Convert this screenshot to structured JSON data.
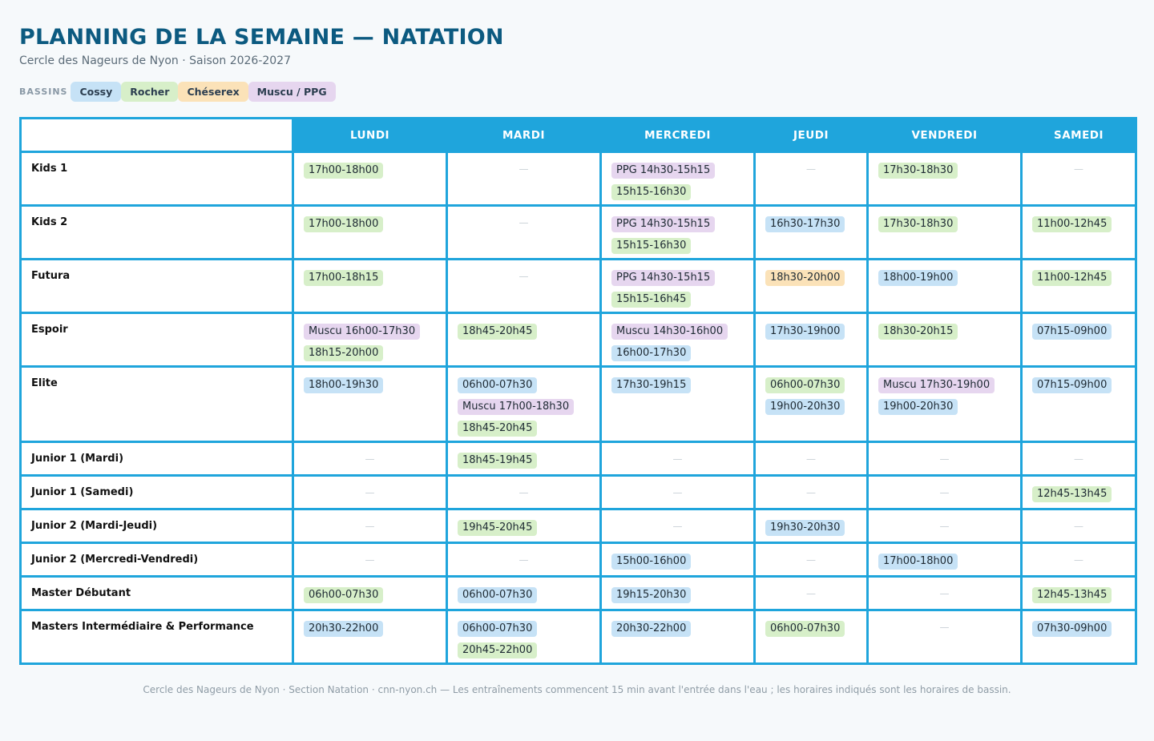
{
  "page": {
    "title": "PLANNING DE LA SEMAINE — NATATION",
    "subtitle": "Cercle des Nageurs de Nyon · Saison 2026-2027"
  },
  "legend": {
    "label": "BASSINS",
    "items": [
      {
        "name": "Cossy",
        "key": "cossy",
        "color": "#c6e2f6"
      },
      {
        "name": "Rocher",
        "key": "rocher",
        "color": "#d7efc9"
      },
      {
        "name": "Chéserex",
        "key": "cheserex",
        "color": "#fbe2b8"
      },
      {
        "name": "Muscu / PPG",
        "key": "muscu",
        "color": "#e6d6ef"
      }
    ]
  },
  "days": [
    "LUNDI",
    "MARDI",
    "MERCREDI",
    "JEUDI",
    "VENDREDI",
    "SAMEDI"
  ],
  "empty_symbol": "—",
  "groups": [
    {
      "name": "Kids 1",
      "slots": [
        [
          {
            "t": "17h00-18h00",
            "p": "rocher"
          }
        ],
        [],
        [
          {
            "t": "PPG 14h30-15h15",
            "p": "muscu"
          },
          {
            "t": "15h15-16h30",
            "p": "rocher"
          }
        ],
        [],
        [
          {
            "t": "17h30-18h30",
            "p": "rocher"
          }
        ],
        []
      ]
    },
    {
      "name": "Kids 2",
      "slots": [
        [
          {
            "t": "17h00-18h00",
            "p": "rocher"
          }
        ],
        [],
        [
          {
            "t": "PPG 14h30-15h15",
            "p": "muscu"
          },
          {
            "t": "15h15-16h30",
            "p": "rocher"
          }
        ],
        [
          {
            "t": "16h30-17h30",
            "p": "cossy"
          }
        ],
        [
          {
            "t": "17h30-18h30",
            "p": "rocher"
          }
        ],
        [
          {
            "t": "11h00-12h45",
            "p": "rocher"
          }
        ]
      ]
    },
    {
      "name": "Futura",
      "slots": [
        [
          {
            "t": "17h00-18h15",
            "p": "rocher"
          }
        ],
        [],
        [
          {
            "t": "PPG 14h30-15h15",
            "p": "muscu"
          },
          {
            "t": "15h15-16h45",
            "p": "rocher"
          }
        ],
        [
          {
            "t": "18h30-20h00",
            "p": "cheserex"
          }
        ],
        [
          {
            "t": "18h00-19h00",
            "p": "cossy"
          }
        ],
        [
          {
            "t": "11h00-12h45",
            "p": "rocher"
          }
        ]
      ]
    },
    {
      "name": "Espoir",
      "slots": [
        [
          {
            "t": "Muscu 16h00-17h30",
            "p": "muscu"
          },
          {
            "t": "18h15-20h00",
            "p": "rocher"
          }
        ],
        [
          {
            "t": "18h45-20h45",
            "p": "rocher"
          }
        ],
        [
          {
            "t": "Muscu 14h30-16h00",
            "p": "muscu"
          },
          {
            "t": "16h00-17h30",
            "p": "cossy"
          }
        ],
        [
          {
            "t": "17h30-19h00",
            "p": "cossy"
          }
        ],
        [
          {
            "t": "18h30-20h15",
            "p": "rocher"
          }
        ],
        [
          {
            "t": "07h15-09h00",
            "p": "cossy"
          }
        ]
      ]
    },
    {
      "name": "Elite",
      "slots": [
        [
          {
            "t": "18h00-19h30",
            "p": "cossy"
          }
        ],
        [
          {
            "t": "06h00-07h30",
            "p": "cossy"
          },
          {
            "t": "Muscu 17h00-18h30",
            "p": "muscu"
          },
          {
            "t": "18h45-20h45",
            "p": "rocher"
          }
        ],
        [
          {
            "t": "17h30-19h15",
            "p": "cossy"
          }
        ],
        [
          {
            "t": "06h00-07h30",
            "p": "rocher"
          },
          {
            "t": "19h00-20h30",
            "p": "cossy"
          }
        ],
        [
          {
            "t": "Muscu 17h30-19h00",
            "p": "muscu"
          },
          {
            "t": "19h00-20h30",
            "p": "cossy"
          }
        ],
        [
          {
            "t": "07h15-09h00",
            "p": "cossy"
          }
        ]
      ]
    },
    {
      "name": "Junior 1 (Mardi)",
      "slots": [
        [],
        [
          {
            "t": "18h45-19h45",
            "p": "rocher"
          }
        ],
        [],
        [],
        [],
        []
      ]
    },
    {
      "name": "Junior 1 (Samedi)",
      "slots": [
        [],
        [],
        [],
        [],
        [],
        [
          {
            "t": "12h45-13h45",
            "p": "rocher"
          }
        ]
      ]
    },
    {
      "name": "Junior 2 (Mardi-Jeudi)",
      "slots": [
        [],
        [
          {
            "t": "19h45-20h45",
            "p": "rocher"
          }
        ],
        [],
        [
          {
            "t": "19h30-20h30",
            "p": "cossy"
          }
        ],
        [],
        []
      ]
    },
    {
      "name": "Junior 2 (Mercredi-Vendredi)",
      "slots": [
        [],
        [],
        [
          {
            "t": "15h00-16h00",
            "p": "cossy"
          }
        ],
        [],
        [
          {
            "t": "17h00-18h00",
            "p": "cossy"
          }
        ],
        []
      ]
    },
    {
      "name": "Master Débutant",
      "slots": [
        [
          {
            "t": "06h00-07h30",
            "p": "rocher"
          }
        ],
        [
          {
            "t": "06h00-07h30",
            "p": "cossy"
          }
        ],
        [
          {
            "t": "19h15-20h30",
            "p": "cossy"
          }
        ],
        [],
        [],
        [
          {
            "t": "12h45-13h45",
            "p": "rocher"
          }
        ]
      ]
    },
    {
      "name": "Masters Intermédiaire & Performance",
      "slots": [
        [
          {
            "t": "20h30-22h00",
            "p": "cossy"
          }
        ],
        [
          {
            "t": "06h00-07h30",
            "p": "cossy"
          },
          {
            "t": "20h45-22h00",
            "p": "rocher"
          }
        ],
        [
          {
            "t": "20h30-22h00",
            "p": "cossy"
          }
        ],
        [
          {
            "t": "06h00-07h30",
            "p": "rocher"
          }
        ],
        [],
        [
          {
            "t": "07h30-09h00",
            "p": "cossy"
          }
        ]
      ]
    }
  ],
  "footer": "Cercle des Nageurs de Nyon · Section Natation · cnn-nyon.ch — Les entraînements commencent 15 min avant l'entrée dans l'eau ; les horaires indiqués sont les horaires de bassin."
}
